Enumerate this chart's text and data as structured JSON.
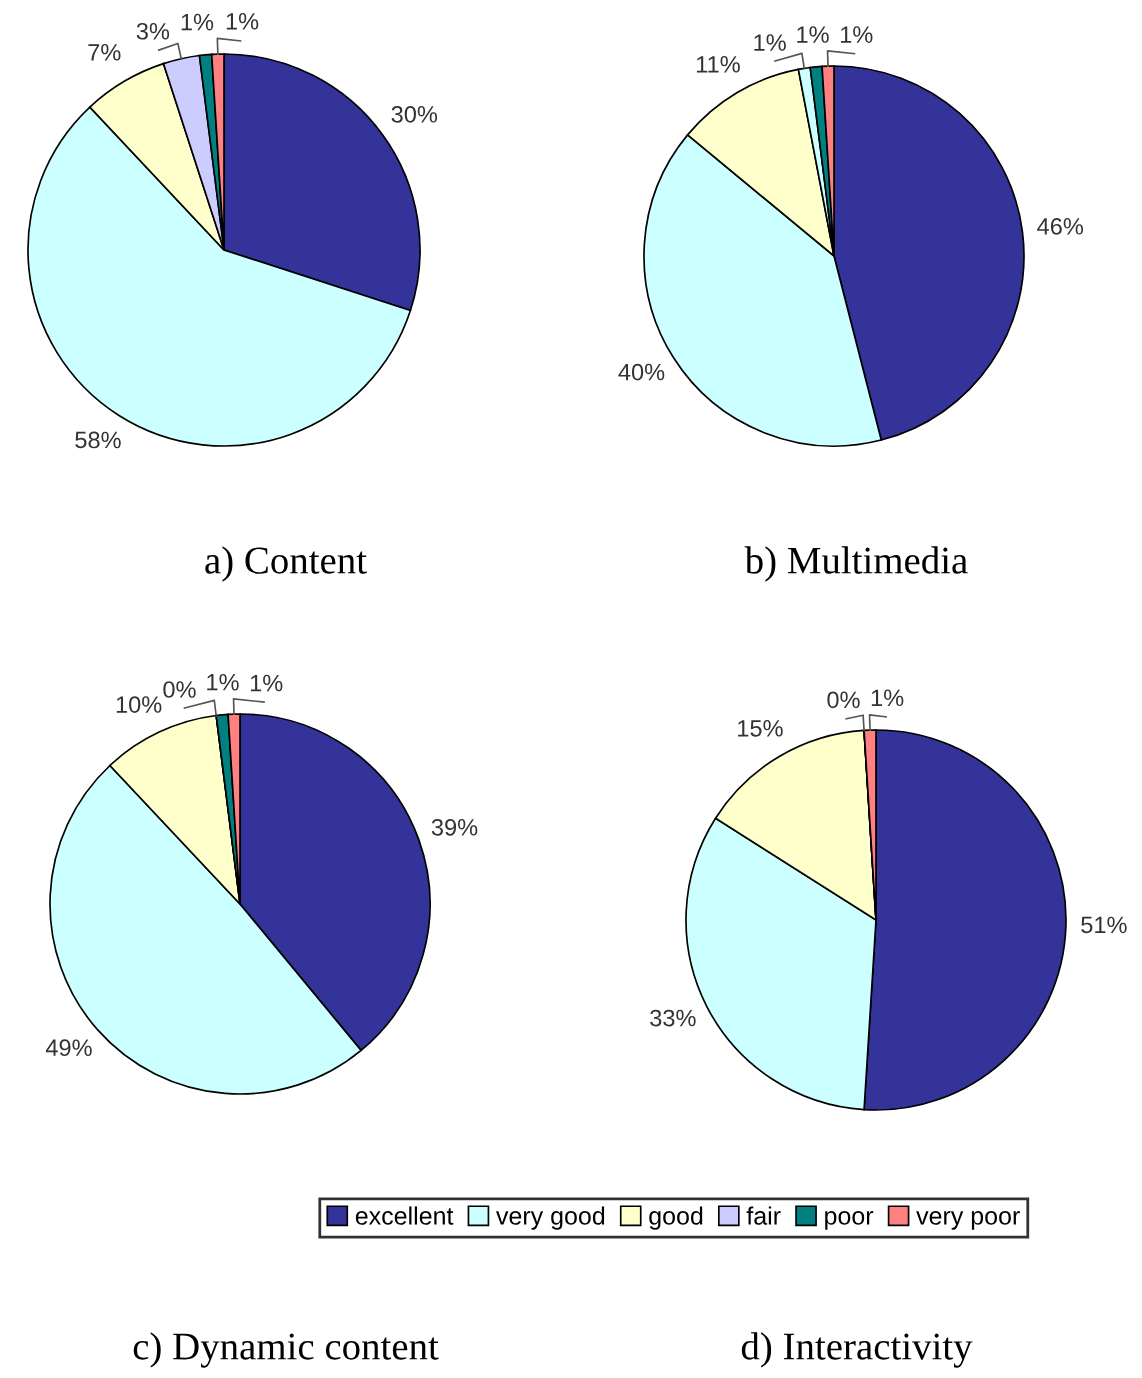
{
  "chart_data": [
    {
      "type": "pie",
      "title": "a) Content",
      "categories": [
        "excellent",
        "very good",
        "good",
        "fair",
        "poor",
        "very poor"
      ],
      "values": [
        30,
        58,
        7,
        3,
        1,
        1
      ],
      "colors": [
        "#333399",
        "#ccffff",
        "#ffffcc",
        "#ccccff",
        "#008080",
        "#ff8080"
      ],
      "value_labels": [
        "30%",
        "58%",
        "7%",
        "3%",
        "1%",
        "1%"
      ],
      "legend": "bottom"
    },
    {
      "type": "pie",
      "title": "b) Multimedia",
      "categories": [
        null,
        null,
        null,
        null,
        null,
        null
      ],
      "values": [
        46,
        40,
        11,
        1,
        1,
        1
      ],
      "colors": [
        "#333399",
        "#ccffff",
        "#ffffcc",
        "#ccffff",
        "#008080",
        "#ff8080"
      ],
      "value_labels": [
        "46%",
        "40%",
        "11%",
        "1%",
        "1%",
        "1%"
      ]
    },
    {
      "type": "pie",
      "title": "c) Dynamic content",
      "categories": [
        null,
        null,
        null,
        null,
        null,
        null
      ],
      "values": [
        39,
        49,
        10,
        0,
        1,
        1
      ],
      "colors": [
        "#333399",
        "#ccffff",
        "#ffffcc",
        "#ccffff",
        "#008080",
        "#ff8080"
      ],
      "value_labels": [
        "39%",
        "49%",
        "10%",
        "0%",
        "1%",
        "1%"
      ]
    },
    {
      "type": "pie",
      "title": "d) Interactivity",
      "categories": [
        null,
        null,
        null,
        null,
        null,
        null
      ],
      "values": [
        51,
        33,
        15,
        0,
        0,
        1
      ],
      "colors": [
        "#333399",
        "#ccffff",
        "#ffffcc",
        "#ccffff",
        "#008080",
        "#ff8080"
      ],
      "value_labels": [
        "51%",
        "33%",
        "15%",
        null,
        "0%",
        "1%"
      ]
    }
  ]
}
